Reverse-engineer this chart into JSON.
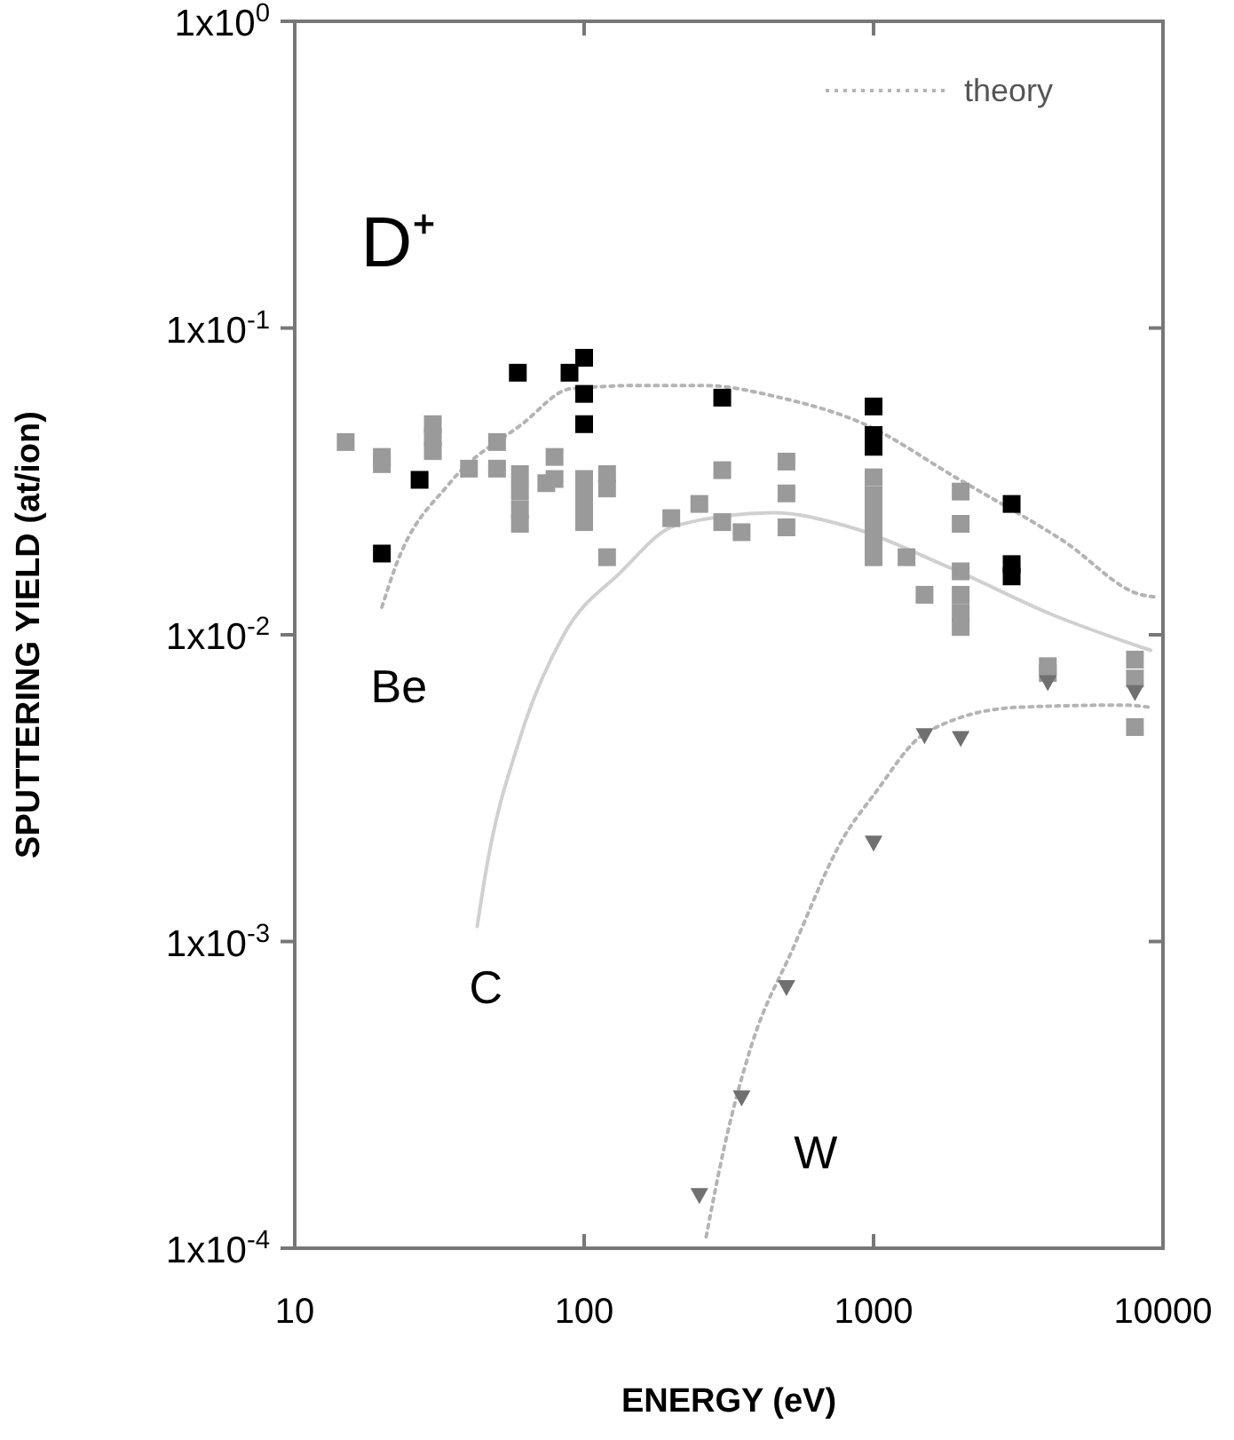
{
  "chart_data": {
    "type": "scatter",
    "xlabel": "ENERGY (eV)",
    "ylabel": "SPUTTERING YIELD (at/ion)",
    "log": "xy",
    "xlim": [
      10,
      10000
    ],
    "ylim": [
      0.0001,
      1
    ],
    "xticks": [
      10,
      100,
      1000,
      10000
    ],
    "yticks": [
      {
        "value": 0.0001,
        "label": "1x10$^{-4}$"
      },
      {
        "value": 0.001,
        "label": "1x10$^{-3}$"
      },
      {
        "value": 0.01,
        "label": "1x10$^{-2}$"
      },
      {
        "value": 0.1,
        "label": "1x10$^{-1}$"
      },
      {
        "value": 1,
        "label": "1x10$^{0}$"
      }
    ],
    "grid": false,
    "legend": "top right",
    "annotations": [
      "D⁺",
      "Be",
      "C",
      "W"
    ],
    "series": [
      {
        "type": "line",
        "name": "theory",
        "color": "#b4b4b4",
        "line_style": "dotted",
        "marker": "none",
        "x": [
          20,
          22.3,
          34.4,
          61,
          90,
          160,
          257,
          476,
          930,
          1920,
          4540,
          8430,
          9300
        ],
        "values": [
          0.0123,
          0.0167,
          0.0313,
          0.0486,
          0.0634,
          0.065,
          0.065,
          0.0593,
          0.0486,
          0.0326,
          0.0202,
          0.0135,
          0.0133
        ]
      },
      {
        "type": "line",
        "color": "#d0d0d0",
        "line_style": "solid",
        "marker": "none",
        "x": [
          42.7,
          45.8,
          60,
          85,
          133,
          207,
          450,
          795,
          1820,
          4170,
          9060
        ],
        "values": [
          0.00112,
          0.0017,
          0.0046,
          0.01,
          0.0159,
          0.0227,
          0.025,
          0.0227,
          0.0166,
          0.0116,
          0.0089
        ]
      },
      {
        "type": "line",
        "color": "#b4b4b4",
        "line_style": "dotted",
        "marker": "none",
        "x": [
          264,
          305,
          379,
          527,
          787,
          1000,
          1520,
          3130,
          7300,
          9060
        ],
        "values": [
          0.000109,
          0.000214,
          0.00046,
          0.00095,
          0.00218,
          0.003,
          0.0048,
          0.0058,
          0.0059,
          0.0058
        ]
      },
      {
        "color": "#000000",
        "marker": "square",
        "x": [
          20,
          27,
          59,
          89,
          100,
          100,
          100,
          300,
          1000,
          1000,
          1000,
          3000,
          3000,
          3000
        ],
        "values": [
          0.0184,
          0.032,
          0.0715,
          0.0715,
          0.08,
          0.061,
          0.0486,
          0.0593,
          0.0555,
          0.0448,
          0.041,
          0.0267,
          0.017,
          0.0155
        ]
      },
      {
        "color": "#9a9a9a",
        "marker": "square",
        "x": [
          15,
          20,
          20,
          30,
          30,
          30,
          40,
          50,
          50,
          60,
          60,
          60,
          60,
          74,
          79,
          79,
          100,
          100,
          100,
          100,
          120,
          120,
          120,
          200,
          250,
          300,
          300,
          350,
          500,
          500,
          500,
          1000,
          1000,
          1000,
          1000,
          1000,
          1000,
          1300,
          1500,
          2000,
          2000,
          2000,
          2000,
          2000,
          2000,
          4000,
          4000,
          8000,
          8000,
          8000
        ],
        "values": [
          0.0425,
          0.038,
          0.036,
          0.0486,
          0.044,
          0.0397,
          0.0348,
          0.0425,
          0.0348,
          0.0334,
          0.0293,
          0.0256,
          0.023,
          0.0312,
          0.038,
          0.0322,
          0.0322,
          0.0285,
          0.0256,
          0.0233,
          0.0334,
          0.03,
          0.0179,
          0.024,
          0.0267,
          0.0344,
          0.0233,
          0.0216,
          0.0367,
          0.0289,
          0.0224,
          0.0326,
          0.0285,
          0.0256,
          0.023,
          0.0204,
          0.0179,
          0.0179,
          0.0135,
          0.0293,
          0.023,
          0.0161,
          0.0135,
          0.0118,
          0.0106,
          0.0079,
          0.0075,
          0.0083,
          0.0072,
          0.005
        ]
      },
      {
        "color": "#707070",
        "marker": "triangle-down",
        "x": [
          250,
          350,
          500,
          1000,
          1500,
          2000,
          4000,
          8000
        ],
        "values": [
          0.000149,
          0.00031,
          0.00071,
          0.0021,
          0.0047,
          0.0046,
          0.007,
          0.0065
        ]
      }
    ]
  }
}
